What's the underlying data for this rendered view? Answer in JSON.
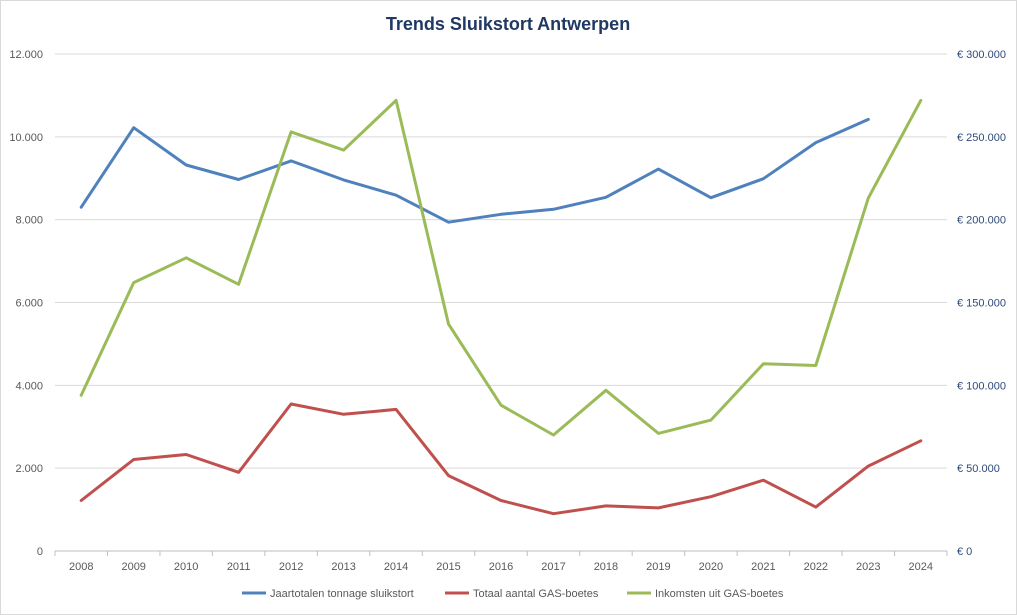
{
  "chart_data": {
    "type": "line",
    "title": "Trends Sluikstort  Antwerpen",
    "categories": [
      "2008",
      "2009",
      "2010",
      "2011",
      "2012",
      "2013",
      "2014",
      "2015",
      "2016",
      "2017",
      "2018",
      "2019",
      "2020",
      "2021",
      "2022",
      "2023",
      "2024"
    ],
    "y_left": {
      "ylim": [
        0,
        12000
      ],
      "ticks": [
        0,
        2000,
        4000,
        6000,
        8000,
        10000,
        12000
      ],
      "tick_labels": [
        "0",
        "2.000",
        "4.000",
        "6.000",
        "8.000",
        "10.000",
        "12.000"
      ]
    },
    "y_right": {
      "ylim": [
        0,
        300000
      ],
      "ticks": [
        0,
        50000,
        100000,
        150000,
        200000,
        250000,
        300000
      ],
      "tick_labels": [
        "€ 0",
        "€ 50.000",
        "€ 100.000",
        "€ 150.000",
        "€ 200.000",
        "€ 250.000",
        "€ 300.000"
      ]
    },
    "series": [
      {
        "name": "Jaartotalen tonnage sluikstort",
        "axis": "left",
        "color": "#4f81bd",
        "values": [
          8300,
          10220,
          9320,
          8970,
          9420,
          8960,
          8590,
          7940,
          8130,
          8250,
          8540,
          9220,
          8530,
          8990,
          9860,
          10420,
          null
        ]
      },
      {
        "name": "Totaal aantal GAS-boetes",
        "axis": "left",
        "color": "#c0504d",
        "values": [
          1220,
          2210,
          2330,
          1900,
          3550,
          3300,
          3420,
          1820,
          1220,
          900,
          1090,
          1040,
          1310,
          1710,
          1060,
          2050,
          2660
        ]
      },
      {
        "name": "Inkomsten uit GAS-boetes",
        "axis": "right",
        "color": "#9bbb59",
        "values": [
          94000,
          162000,
          177000,
          161000,
          253000,
          242000,
          272000,
          137000,
          88000,
          70000,
          97000,
          71000,
          79000,
          113000,
          112000,
          213000,
          272000
        ]
      }
    ],
    "grid": true,
    "legend_position": "bottom"
  }
}
